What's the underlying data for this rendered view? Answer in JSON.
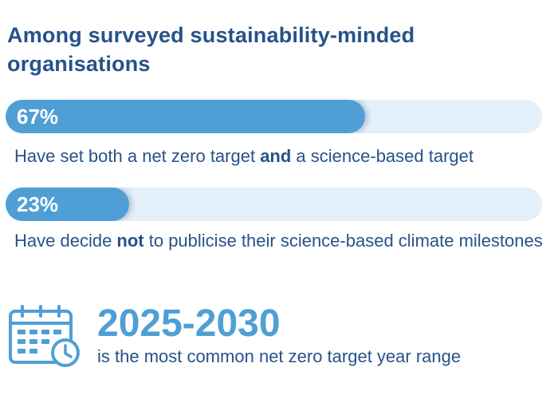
{
  "title": "Among surveyed sustainability-minded organisations",
  "chart_data": {
    "type": "bar",
    "categories": [
      "Have set both a net zero target and a science-based target",
      "Have decide not to publicise their science-based climate milestones"
    ],
    "values": [
      67,
      23
    ],
    "value_labels": [
      "67%",
      "23%"
    ],
    "unit": "%",
    "ylim": [
      0,
      100
    ]
  },
  "bars": [
    {
      "value_label": "67%",
      "caption_before": "Have set both a net zero target ",
      "caption_emphasis": "and",
      "caption_after": " a science-based target"
    },
    {
      "value_label": "23%",
      "caption_before": "Have decide ",
      "caption_emphasis": "not",
      "caption_after": " to publicise their science-based climate milestones"
    }
  ],
  "highlight": {
    "icon": "calendar-clock-icon",
    "range": "2025-2030",
    "caption": "is the most common net zero target year range"
  },
  "colors": {
    "title": "#27528a",
    "bar_fill": "#4f9fd6",
    "bar_track": "#e3eff9",
    "highlight": "#4f9fd6",
    "icon": "#4f9fd6"
  }
}
